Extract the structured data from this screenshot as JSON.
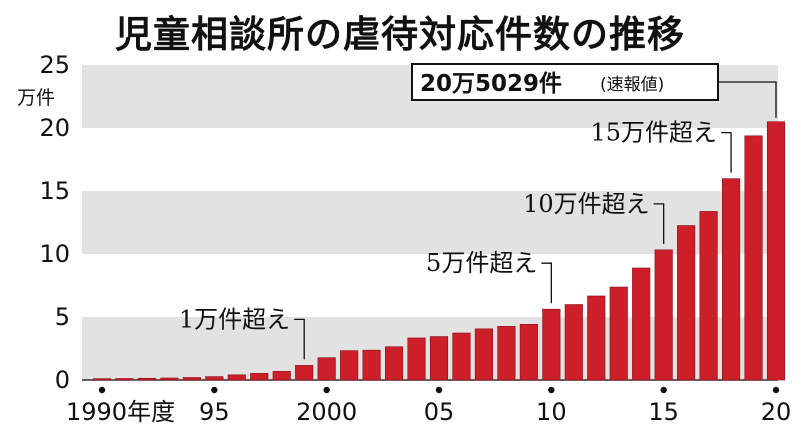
{
  "title": "児童相談所の虐待対応件数の推移",
  "chart_data": {
    "type": "bar",
    "title": "児童相談所の虐待対応件数の推移",
    "y_unit": "万件",
    "ylim": [
      0,
      25
    ],
    "y_ticks": [
      0,
      5,
      10,
      15,
      20,
      25
    ],
    "bands": "alternating grey/white every 5",
    "color": "#cc1f2a",
    "categories": [
      "1990",
      "1991",
      "1992",
      "1993",
      "1994",
      "1995",
      "1996",
      "1997",
      "1998",
      "1999",
      "2000",
      "2001",
      "2002",
      "2003",
      "2004",
      "2005",
      "2006",
      "2007",
      "2008",
      "2009",
      "2010",
      "2011",
      "2012",
      "2013",
      "2014",
      "2015",
      "2016",
      "2017",
      "2018",
      "2019",
      "2020"
    ],
    "x_tick_labels": [
      {
        "category": "1990",
        "label": "1990年度"
      },
      {
        "category": "1995",
        "label": "95"
      },
      {
        "category": "2000",
        "label": "2000"
      },
      {
        "category": "2005",
        "label": "05"
      },
      {
        "category": "2010",
        "label": "10"
      },
      {
        "category": "2015",
        "label": "15"
      },
      {
        "category": "2020",
        "label": "20"
      }
    ],
    "values": [
      0.11,
      0.12,
      0.14,
      0.16,
      0.2,
      0.27,
      0.41,
      0.53,
      0.69,
      1.16,
      1.77,
      2.33,
      2.37,
      2.64,
      3.34,
      3.45,
      3.73,
      4.06,
      4.26,
      4.42,
      5.62,
      5.99,
      6.67,
      7.38,
      8.89,
      10.33,
      12.26,
      13.38,
      15.98,
      19.38,
      20.5
    ],
    "annotations": [
      {
        "category": "1999",
        "text": "1万件超え"
      },
      {
        "category": "2010",
        "text": "5万件超え"
      },
      {
        "category": "2015",
        "text": "10万件超え"
      },
      {
        "category": "2018",
        "text": "15万件超え"
      }
    ],
    "callout": {
      "category": "2020",
      "text": "20万5029件",
      "note": "(速報値)"
    }
  }
}
